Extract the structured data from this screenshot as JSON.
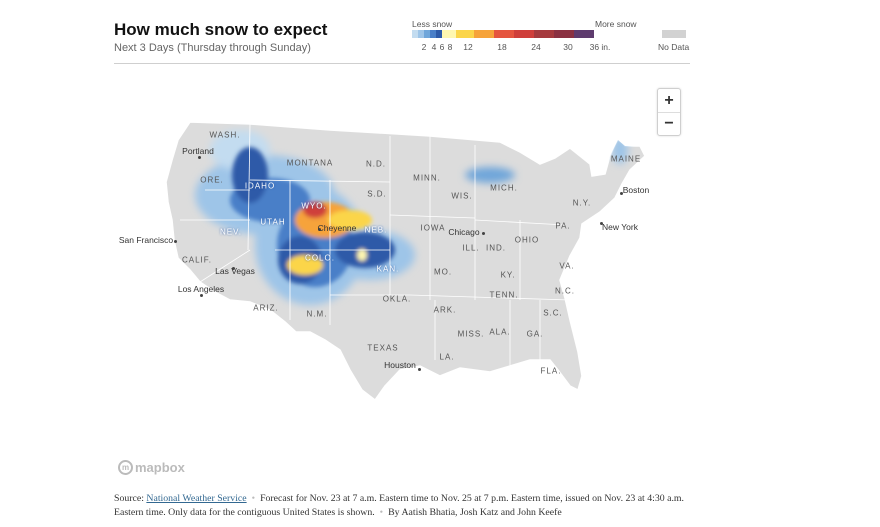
{
  "header": {
    "title": "How much snow to expect",
    "subtitle": "Next 3 Days (Thursday through Sunday)"
  },
  "legend": {
    "less_label": "Less snow",
    "more_label": "More snow",
    "colors": [
      "#c3dcf0",
      "#9ec5e8",
      "#6fa6da",
      "#4a7fc8",
      "#2e5aa8",
      "#fff7b0",
      "#fbd54a",
      "#f6a33a",
      "#e5553f",
      "#cf3f3b",
      "#a53a3e",
      "#8a3142",
      "#5e3b6e"
    ],
    "ticks": [
      "2",
      "4",
      "6",
      "8",
      "12",
      "18",
      "24",
      "30",
      "36 in."
    ],
    "nodata_label": "No Data",
    "nodata_color": "#d2d2d2"
  },
  "map": {
    "states": [
      "WASH.",
      "ORE.",
      "IDAHO",
      "MONTANA",
      "N.D.",
      "S.D.",
      "MINN.",
      "WIS.",
      "MICH.",
      "NEV.",
      "CALIF.",
      "UTAH",
      "WYO.",
      "NEB.",
      "IOWA",
      "ILL.",
      "IND.",
      "OHIO",
      "COLO.",
      "KAN.",
      "MO.",
      "KY.",
      "ARIZ.",
      "N.M.",
      "OKLA.",
      "ARK.",
      "TENN.",
      "MISS.",
      "ALA.",
      "GA.",
      "TEXAS",
      "LA.",
      "FLA.",
      "PA.",
      "N.Y.",
      "VA.",
      "N.C.",
      "S.C.",
      "MAINE"
    ],
    "cities": [
      "Portland",
      "San Francisco",
      "Las Vegas",
      "Los Angeles",
      "Cheyenne",
      "Chicago",
      "Houston",
      "Boston",
      "New York"
    ]
  },
  "zoom": {
    "in_label": "+",
    "out_label": "−"
  },
  "attribution": {
    "logo_text": "mapbox"
  },
  "source": {
    "prefix": "Source: ",
    "link_text": "National Weather Service",
    "forecast": "Forecast for Nov. 23 at 7 a.m. Eastern time to Nov. 25 at 7 p.m. Eastern time, issued on Nov. 23 at 4:30 a.m. Eastern time. Only data for the contiguous United States is shown.",
    "byline": "By Aatish Bhatia, Josh Katz and John Keefe"
  }
}
